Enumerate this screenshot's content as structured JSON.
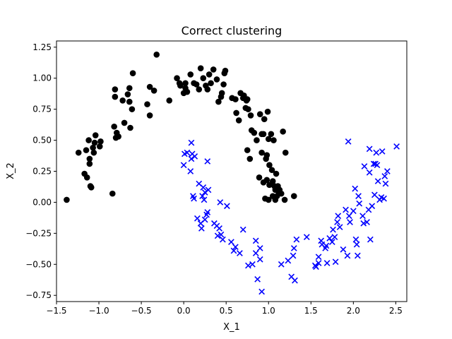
{
  "chart_data": {
    "type": "scatter",
    "title": "Correct clustering",
    "xlabel": "X_1",
    "ylabel": "X_2",
    "xlim": [
      -1.5,
      2.63
    ],
    "ylim": [
      -0.8,
      1.3
    ],
    "xticks": [
      -1.5,
      -1.0,
      -0.5,
      0.0,
      0.5,
      1.0,
      1.5,
      2.0,
      2.5
    ],
    "xtick_labels": [
      "−1.5",
      "−1.0",
      "−0.5",
      "0.0",
      "0.5",
      "1.0",
      "1.5",
      "2.0",
      "2.5"
    ],
    "yticks": [
      -0.75,
      -0.5,
      -0.25,
      0.0,
      0.25,
      0.5,
      0.75,
      1.0,
      1.25
    ],
    "ytick_labels": [
      "−0.75",
      "−0.50",
      "−0.25",
      "0.00",
      "0.25",
      "0.50",
      "0.75",
      "1.00",
      "1.25"
    ],
    "grid": false,
    "legend": "none",
    "series": [
      {
        "marker": "circle",
        "color": "#000000",
        "points": [
          [
            -1.38,
            0.02
          ],
          [
            -1.24,
            0.4
          ],
          [
            -1.17,
            0.23
          ],
          [
            -1.15,
            0.42
          ],
          [
            -1.14,
            0.2
          ],
          [
            -1.12,
            0.5
          ],
          [
            -1.11,
            0.35
          ],
          [
            -1.11,
            0.31
          ],
          [
            -1.1,
            0.13
          ],
          [
            -1.09,
            0.12
          ],
          [
            -1.07,
            0.44
          ],
          [
            -1.06,
            0.4
          ],
          [
            -1.05,
            0.48
          ],
          [
            -1.04,
            0.54
          ],
          [
            -0.99,
            0.45
          ],
          [
            -0.98,
            0.49
          ],
          [
            -0.84,
            0.07
          ],
          [
            -0.82,
            0.61
          ],
          [
            -0.81,
            0.91
          ],
          [
            -0.81,
            0.85
          ],
          [
            -0.8,
            0.52
          ],
          [
            -0.79,
            0.56
          ],
          [
            -0.77,
            0.53
          ],
          [
            -0.72,
            0.82
          ],
          [
            -0.7,
            0.64
          ],
          [
            -0.66,
            0.87
          ],
          [
            -0.64,
            0.81
          ],
          [
            -0.64,
            0.92
          ],
          [
            -0.63,
            0.6
          ],
          [
            -0.61,
            0.75
          ],
          [
            -0.6,
            1.04
          ],
          [
            -0.43,
            0.79
          ],
          [
            -0.4,
            0.93
          ],
          [
            -0.4,
            0.7
          ],
          [
            -0.35,
            0.9
          ],
          [
            -0.32,
            1.19
          ],
          [
            -0.17,
            0.82
          ],
          [
            -0.08,
            1.0
          ],
          [
            -0.05,
            0.96
          ],
          [
            -0.04,
            0.94
          ],
          [
            0.0,
            0.88
          ],
          [
            0.02,
            0.92
          ],
          [
            0.02,
            0.96
          ],
          [
            0.04,
            0.89
          ],
          [
            0.08,
            1.03
          ],
          [
            0.12,
            0.96
          ],
          [
            0.15,
            0.95
          ],
          [
            0.18,
            0.91
          ],
          [
            0.2,
            1.08
          ],
          [
            0.23,
            1.0
          ],
          [
            0.26,
            0.94
          ],
          [
            0.28,
            0.91
          ],
          [
            0.3,
            1.03
          ],
          [
            0.32,
            0.96
          ],
          [
            0.35,
            1.07
          ],
          [
            0.39,
            0.99
          ],
          [
            0.41,
            0.81
          ],
          [
            0.44,
            0.85
          ],
          [
            0.45,
            0.88
          ],
          [
            0.47,
            0.95
          ],
          [
            0.48,
            1.04
          ],
          [
            0.49,
            1.06
          ],
          [
            0.57,
            0.84
          ],
          [
            0.61,
            0.83
          ],
          [
            0.62,
            0.72
          ],
          [
            0.65,
            0.66
          ],
          [
            0.67,
            0.88
          ],
          [
            0.7,
            0.84
          ],
          [
            0.71,
            0.86
          ],
          [
            0.73,
            0.76
          ],
          [
            0.74,
            0.82
          ],
          [
            0.75,
            0.42
          ],
          [
            0.75,
            0.83
          ],
          [
            0.76,
            0.75
          ],
          [
            0.78,
            0.35
          ],
          [
            0.79,
            0.7
          ],
          [
            0.8,
            0.58
          ],
          [
            0.83,
            0.56
          ],
          [
            0.86,
            0.5
          ],
          [
            0.89,
            0.2
          ],
          [
            0.9,
            0.71
          ],
          [
            0.92,
            0.4
          ],
          [
            0.92,
            0.55
          ],
          [
            0.94,
            0.16
          ],
          [
            0.94,
            0.55
          ],
          [
            0.95,
            0.67
          ],
          [
            0.96,
            0.03
          ],
          [
            0.97,
            0.35
          ],
          [
            0.98,
            0.38
          ],
          [
            0.98,
            0.18
          ],
          [
            0.99,
            0.73
          ],
          [
            1.0,
            0.51
          ],
          [
            1.0,
            0.02
          ],
          [
            1.01,
            0.3
          ],
          [
            1.01,
            0.14
          ],
          [
            1.03,
            0.55
          ],
          [
            1.04,
            0.26
          ],
          [
            1.05,
            0.05
          ],
          [
            1.05,
            0.17
          ],
          [
            1.06,
            0.5
          ],
          [
            1.07,
            0.13
          ],
          [
            1.08,
            0.1
          ],
          [
            1.08,
            0.02
          ],
          [
            1.09,
            0.23
          ],
          [
            1.1,
            0.05
          ],
          [
            1.11,
            0.13
          ],
          [
            1.12,
            0.08
          ],
          [
            1.13,
            0.1
          ],
          [
            1.15,
            0.07
          ],
          [
            1.17,
            0.57
          ],
          [
            1.19,
            0.02
          ],
          [
            1.2,
            0.4
          ],
          [
            1.3,
            0.05
          ]
        ]
      },
      {
        "marker": "x",
        "color": "#0000ff",
        "points": [
          [
            0.0,
            0.3
          ],
          [
            0.01,
            0.39
          ],
          [
            0.04,
            0.4
          ],
          [
            0.08,
            0.25
          ],
          [
            0.09,
            0.48
          ],
          [
            0.09,
            0.35
          ],
          [
            0.1,
            0.39
          ],
          [
            0.11,
            0.05
          ],
          [
            0.12,
            0.03
          ],
          [
            0.13,
            0.37
          ],
          [
            0.16,
            -0.13
          ],
          [
            0.18,
            0.15
          ],
          [
            0.2,
            -0.17
          ],
          [
            0.21,
            -0.21
          ],
          [
            0.22,
            0.05
          ],
          [
            0.23,
            0.12
          ],
          [
            0.24,
            0.02
          ],
          [
            0.25,
            0.08
          ],
          [
            0.25,
            -0.14
          ],
          [
            0.27,
            -0.1
          ],
          [
            0.28,
            0.33
          ],
          [
            0.28,
            -0.08
          ],
          [
            0.29,
            0.1
          ],
          [
            0.36,
            -0.17
          ],
          [
            0.39,
            -0.19
          ],
          [
            0.4,
            -0.27
          ],
          [
            0.42,
            -0.21
          ],
          [
            0.43,
            0.0
          ],
          [
            0.44,
            -0.26
          ],
          [
            0.46,
            -0.3
          ],
          [
            0.51,
            -0.03
          ],
          [
            0.56,
            -0.32
          ],
          [
            0.59,
            -0.39
          ],
          [
            0.61,
            -0.36
          ],
          [
            0.66,
            -0.41
          ],
          [
            0.7,
            -0.22
          ],
          [
            0.76,
            -0.51
          ],
          [
            0.81,
            -0.5
          ],
          [
            0.85,
            -0.31
          ],
          [
            0.85,
            -0.41
          ],
          [
            0.87,
            -0.62
          ],
          [
            0.9,
            -0.46
          ],
          [
            0.9,
            -0.37
          ],
          [
            0.92,
            -0.72
          ],
          [
            1.15,
            -0.5
          ],
          [
            1.23,
            -0.47
          ],
          [
            1.27,
            -0.6
          ],
          [
            1.29,
            -0.43
          ],
          [
            1.3,
            -0.37
          ],
          [
            1.33,
            -0.3
          ],
          [
            1.31,
            -0.63
          ],
          [
            1.45,
            -0.28
          ],
          [
            1.55,
            -0.51
          ],
          [
            1.56,
            -0.52
          ],
          [
            1.59,
            -0.44
          ],
          [
            1.59,
            -0.49
          ],
          [
            1.62,
            -0.31
          ],
          [
            1.63,
            -0.34
          ],
          [
            1.67,
            -0.37
          ],
          [
            1.68,
            -0.35
          ],
          [
            1.69,
            -0.49
          ],
          [
            1.72,
            -0.29
          ],
          [
            1.75,
            -0.32
          ],
          [
            1.76,
            -0.22
          ],
          [
            1.78,
            -0.28
          ],
          [
            1.79,
            -0.48
          ],
          [
            1.81,
            -0.16
          ],
          [
            1.82,
            -0.11
          ],
          [
            1.84,
            -0.2
          ],
          [
            1.88,
            -0.38
          ],
          [
            1.91,
            -0.06
          ],
          [
            1.93,
            -0.43
          ],
          [
            1.94,
            0.49
          ],
          [
            1.95,
            -0.11
          ],
          [
            1.96,
            -0.16
          ],
          [
            2.0,
            -0.07
          ],
          [
            2.02,
            0.11
          ],
          [
            2.03,
            -0.3
          ],
          [
            2.04,
            -0.34
          ],
          [
            2.05,
            -0.43
          ],
          [
            2.06,
            0.05
          ],
          [
            2.07,
            -0.01
          ],
          [
            2.12,
            -0.17
          ],
          [
            2.13,
            0.29
          ],
          [
            2.16,
            -0.16
          ],
          [
            2.18,
            -0.06
          ],
          [
            2.19,
            0.43
          ],
          [
            2.19,
            0.24
          ],
          [
            2.2,
            -0.3
          ],
          [
            2.22,
            -0.03
          ],
          [
            2.24,
            0.31
          ],
          [
            2.25,
            0.06
          ],
          [
            2.26,
            0.31
          ],
          [
            2.27,
            0.4
          ],
          [
            2.28,
            0.3
          ],
          [
            2.29,
            0.17
          ],
          [
            2.31,
            0.02
          ],
          [
            2.33,
            0.04
          ],
          [
            2.34,
            0.41
          ],
          [
            2.36,
            0.03
          ],
          [
            2.37,
            0.21
          ],
          [
            2.38,
            0.15
          ],
          [
            2.4,
            0.25
          ],
          [
            2.51,
            0.45
          ],
          [
            2.11,
            -0.11
          ]
        ]
      }
    ]
  }
}
